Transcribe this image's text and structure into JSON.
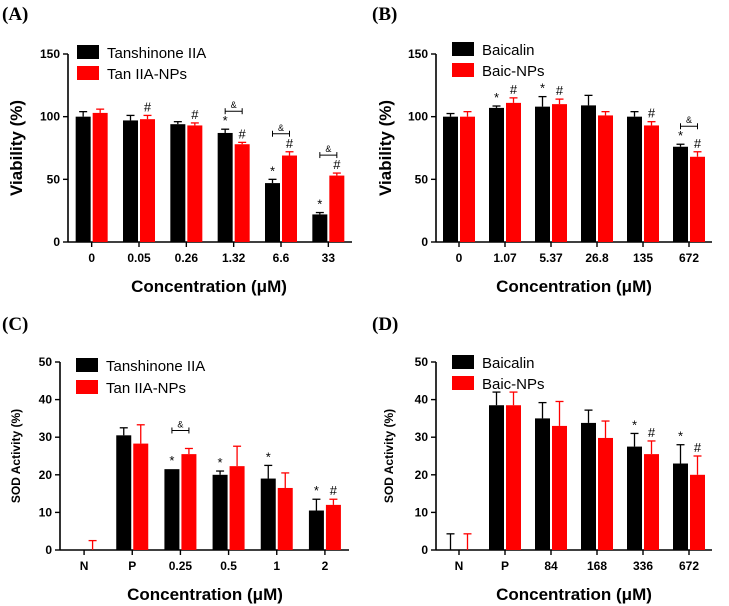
{
  "chart_data": [
    {
      "type": "bar",
      "panel": "(A)",
      "title": "",
      "xlabel": "Concentration (μM)",
      "ylabel": "Viability (%)",
      "ylim": [
        0,
        150
      ],
      "yticks": [
        "0",
        "50",
        "100",
        "150"
      ],
      "categories": [
        "0",
        "0.05",
        "0.26",
        "1.32",
        "6.6",
        "33"
      ],
      "legend": "top-left",
      "series": [
        {
          "name": "Tanshinone IIA",
          "color": "#000000",
          "values": [
            100,
            97,
            94,
            87,
            47,
            22
          ],
          "errors": [
            4,
            4,
            2,
            3,
            3,
            1.5
          ],
          "marks": [
            "",
            "",
            "",
            "*",
            "*",
            "*"
          ]
        },
        {
          "name": "Tan IIA-NPs",
          "color": "#ff0000",
          "values": [
            103,
            98,
            93,
            78,
            69,
            53
          ],
          "errors": [
            3,
            3,
            2,
            1.5,
            3,
            2
          ],
          "marks": [
            "",
            "#",
            "#",
            "#",
            "#",
            "#"
          ]
        }
      ],
      "brackets": [
        {
          "index": 3,
          "label": "&"
        },
        {
          "index": 4,
          "label": "&"
        },
        {
          "index": 5,
          "label": "&"
        }
      ]
    },
    {
      "type": "bar",
      "panel": "(B)",
      "title": "",
      "xlabel": "Concentration (μM)",
      "ylabel": "Viability (%)",
      "ylim": [
        0,
        150
      ],
      "yticks": [
        "0",
        "50",
        "100",
        "150"
      ],
      "categories": [
        "0",
        "1.07",
        "5.37",
        "26.8",
        "135",
        "672"
      ],
      "legend": "top-left",
      "series": [
        {
          "name": "Baicalin",
          "color": "#000000",
          "values": [
            100,
            107,
            108,
            109,
            100,
            76
          ],
          "errors": [
            2.5,
            1.5,
            8,
            8,
            4,
            2
          ],
          "marks": [
            "",
            "*",
            "*",
            "",
            "",
            "*"
          ]
        },
        {
          "name": "Baic-NPs",
          "color": "#ff0000",
          "values": [
            100,
            111,
            110,
            101,
            93,
            68
          ],
          "errors": [
            4,
            4,
            4,
            3,
            3,
            4
          ],
          "marks": [
            "",
            "#",
            "#",
            "",
            "#",
            "#"
          ]
        }
      ],
      "brackets": [
        {
          "index": 5,
          "label": "&"
        }
      ]
    },
    {
      "type": "bar",
      "panel": "(C)",
      "title": "",
      "xlabel": "Concentration (μM)",
      "ylabel": "SOD Activity (%)",
      "ylim": [
        0,
        50
      ],
      "yticks": [
        "0",
        "10",
        "20",
        "30",
        "40",
        "50"
      ],
      "categories": [
        "N",
        "P",
        "0.25",
        "0.5",
        "1",
        "2"
      ],
      "legend": "top-left",
      "series": [
        {
          "name": "Tanshinone IIA",
          "color": "#000000",
          "values": [
            0,
            30.5,
            21.5,
            20,
            19,
            10.5
          ],
          "errors": [
            0,
            2,
            0,
            1,
            3.5,
            3
          ],
          "marks": [
            "",
            "",
            "*",
            "*",
            "*",
            "*"
          ]
        },
        {
          "name": "Tan IIA-NPs",
          "color": "#ff0000",
          "values": [
            0,
            28.3,
            25.5,
            22.3,
            16.5,
            12
          ],
          "errors": [
            2.5,
            5,
            1.5,
            5.3,
            4,
            1.5
          ],
          "marks": [
            "",
            "",
            "",
            "",
            "",
            "#"
          ]
        }
      ],
      "brackets": [
        {
          "index": 2,
          "label": "&"
        }
      ]
    },
    {
      "type": "bar",
      "panel": "(D)",
      "title": "",
      "xlabel": "Concentration (μM)",
      "ylabel": "SOD Activity (%)",
      "ylim": [
        0,
        50
      ],
      "yticks": [
        "0",
        "10",
        "20",
        "30",
        "40",
        "50"
      ],
      "categories": [
        "N",
        "P",
        "84",
        "168",
        "336",
        "672"
      ],
      "legend": "top-left",
      "series": [
        {
          "name": "Baicalin",
          "color": "#000000",
          "values": [
            0,
            38.5,
            35,
            33.8,
            27.5,
            23
          ],
          "errors": [
            4.3,
            3.5,
            4.2,
            3.4,
            3.5,
            5
          ],
          "marks": [
            "",
            "",
            "",
            "",
            "*",
            "*"
          ]
        },
        {
          "name": "Baic-NPs",
          "color": "#ff0000",
          "values": [
            0,
            38.5,
            33,
            29.8,
            25.5,
            20
          ],
          "errors": [
            4.3,
            3.5,
            6.5,
            4.5,
            3.5,
            5
          ],
          "marks": [
            "",
            "",
            "",
            "",
            "#",
            "#"
          ]
        }
      ],
      "brackets": []
    }
  ]
}
